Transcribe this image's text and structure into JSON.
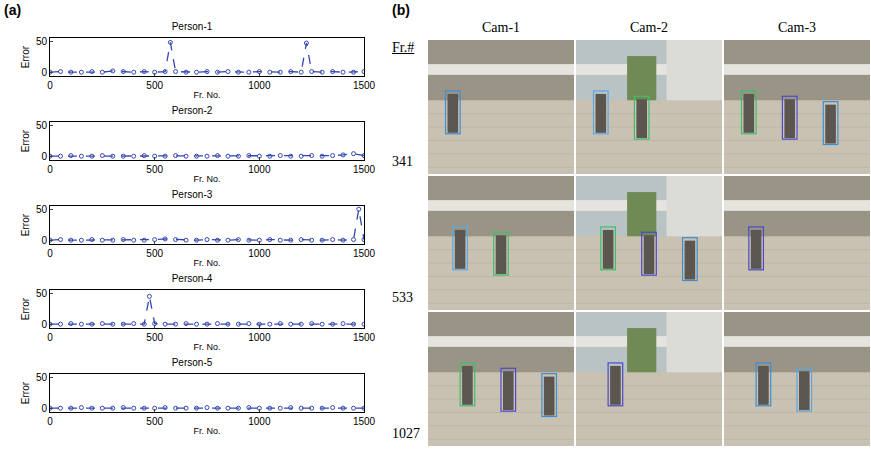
{
  "chart_data": [
    {
      "type": "line",
      "title": "Person-1",
      "x_label": "Fr. No.",
      "y_label": "Error",
      "x": [
        0,
        50,
        100,
        150,
        200,
        250,
        300,
        350,
        400,
        450,
        500,
        550,
        575,
        600,
        650,
        700,
        750,
        800,
        850,
        900,
        950,
        1000,
        1050,
        1100,
        1150,
        1200,
        1225,
        1250,
        1300,
        1350,
        1400,
        1450,
        1500
      ],
      "values": [
        1,
        2,
        1,
        1,
        2,
        1,
        3,
        2,
        1,
        2,
        1,
        2,
        48,
        2,
        1,
        1,
        2,
        1,
        2,
        1,
        1,
        2,
        1,
        1,
        2,
        1,
        47,
        2,
        1,
        2,
        1,
        1,
        2
      ],
      "color": "#3347b0",
      "marker": "circle",
      "line_style": "dash",
      "xlim": [
        0,
        1500
      ],
      "xticks": [
        0,
        500,
        1000,
        1500
      ],
      "ylim": [
        -5,
        55
      ],
      "yticks": [
        0,
        50
      ]
    },
    {
      "type": "line",
      "title": "Person-2",
      "x_label": "Fr. No.",
      "y_label": "Error",
      "x": [
        0,
        50,
        100,
        150,
        200,
        250,
        300,
        350,
        400,
        450,
        500,
        550,
        600,
        650,
        700,
        750,
        800,
        850,
        900,
        950,
        1000,
        1050,
        1100,
        1150,
        1200,
        1250,
        1300,
        1350,
        1400,
        1450,
        1500
      ],
      "values": [
        1,
        1,
        2,
        1,
        1,
        2,
        1,
        1,
        1,
        2,
        1,
        1,
        2,
        1,
        1,
        1,
        2,
        1,
        1,
        2,
        1,
        1,
        2,
        1,
        1,
        2,
        1,
        2,
        3,
        5,
        2
      ],
      "color": "#3347b0",
      "marker": "circle",
      "line_style": "dash",
      "xlim": [
        0,
        1500
      ],
      "xticks": [
        0,
        500,
        1000,
        1500
      ],
      "ylim": [
        -5,
        55
      ],
      "yticks": [
        0,
        50
      ]
    },
    {
      "type": "line",
      "title": "Person-3",
      "x_label": "Fr. No.",
      "y_label": "Error",
      "x": [
        0,
        50,
        100,
        150,
        200,
        250,
        300,
        350,
        400,
        450,
        500,
        550,
        600,
        650,
        700,
        750,
        800,
        850,
        900,
        950,
        1000,
        1050,
        1100,
        1150,
        1200,
        1250,
        1300,
        1350,
        1400,
        1450,
        1475,
        1500
      ],
      "values": [
        1,
        2,
        1,
        1,
        2,
        1,
        1,
        2,
        1,
        1,
        2,
        3,
        2,
        1,
        1,
        2,
        1,
        1,
        2,
        1,
        1,
        2,
        1,
        1,
        2,
        1,
        1,
        2,
        1,
        2,
        50,
        2
      ],
      "color": "#3347b0",
      "marker": "circle",
      "line_style": "dash",
      "xlim": [
        0,
        1500
      ],
      "xticks": [
        0,
        500,
        1000,
        1500
      ],
      "ylim": [
        -5,
        55
      ],
      "yticks": [
        0,
        50
      ]
    },
    {
      "type": "line",
      "title": "Person-4",
      "x_label": "Fr. No.",
      "y_label": "Error",
      "x": [
        0,
        50,
        100,
        150,
        200,
        250,
        300,
        350,
        400,
        450,
        475,
        500,
        550,
        600,
        650,
        700,
        750,
        800,
        850,
        900,
        950,
        1000,
        1050,
        1100,
        1150,
        1200,
        1250,
        1300,
        1350,
        1400,
        1450,
        1500
      ],
      "values": [
        1,
        1,
        2,
        1,
        1,
        2,
        1,
        1,
        2,
        1,
        45,
        2,
        1,
        1,
        2,
        1,
        1,
        2,
        1,
        1,
        2,
        1,
        1,
        2,
        1,
        1,
        2,
        1,
        1,
        2,
        1,
        1
      ],
      "color": "#3347b0",
      "marker": "circle",
      "line_style": "dash",
      "xlim": [
        0,
        1500
      ],
      "xticks": [
        0,
        500,
        1000,
        1500
      ],
      "ylim": [
        -5,
        55
      ],
      "yticks": [
        0,
        50
      ]
    },
    {
      "type": "line",
      "title": "Person-5",
      "x_label": "Fr. No.",
      "y_label": "Error",
      "x": [
        0,
        50,
        100,
        150,
        200,
        250,
        300,
        350,
        400,
        450,
        500,
        550,
        600,
        650,
        700,
        750,
        800,
        850,
        900,
        950,
        1000,
        1050,
        1100,
        1150,
        1200,
        1250,
        1300,
        1350,
        1400,
        1450,
        1500
      ],
      "values": [
        1,
        1,
        1,
        2,
        1,
        1,
        1,
        2,
        1,
        1,
        1,
        2,
        1,
        1,
        1,
        2,
        1,
        1,
        1,
        2,
        1,
        1,
        1,
        2,
        1,
        1,
        1,
        2,
        1,
        1,
        1
      ],
      "color": "#3347b0",
      "marker": "circle",
      "line_style": "dash",
      "xlim": [
        0,
        1500
      ],
      "xticks": [
        0,
        500,
        1000,
        1500
      ],
      "ylim": [
        -5,
        55
      ],
      "yticks": [
        0,
        50
      ]
    }
  ],
  "panel_labels": [
    "(a)",
    "(b)"
  ],
  "camera_grid": {
    "row_header": "Fr.#",
    "columns": [
      "Cam-1",
      "Cam-2",
      "Cam-3"
    ],
    "rows": [
      341,
      533,
      1027
    ]
  }
}
